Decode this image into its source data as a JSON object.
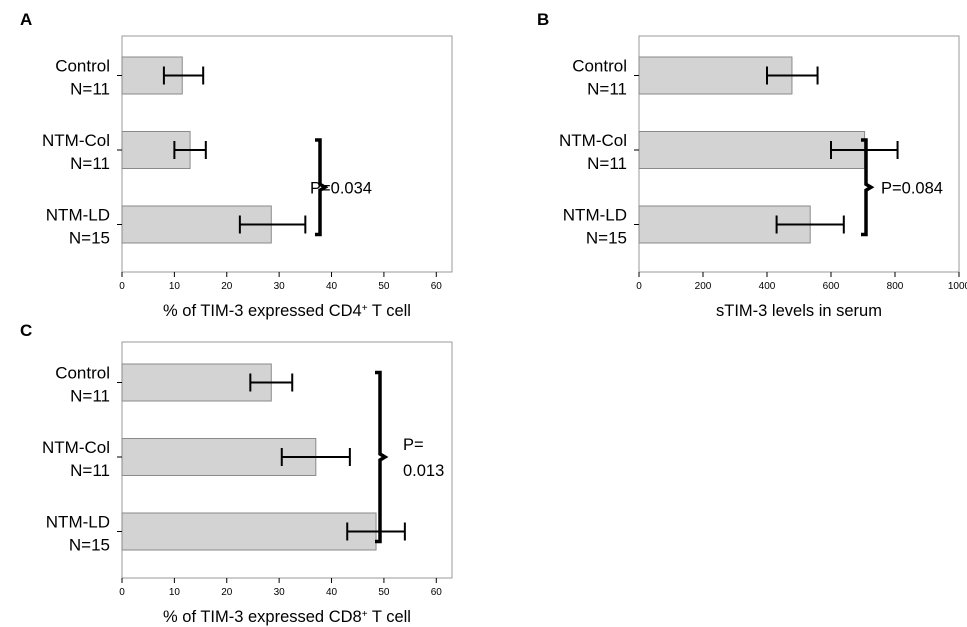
{
  "chart_data": [
    {
      "type": "bar",
      "orientation": "horizontal",
      "panel_label": "A",
      "categories": [
        {
          "name": "Control",
          "n": "N=11"
        },
        {
          "name": "NTM-Col",
          "n": "N=11"
        },
        {
          "name": "NTM-LD",
          "n": "N=15"
        }
      ],
      "values": [
        11.5,
        13,
        28.5
      ],
      "error": [
        [
          8,
          15.5
        ],
        [
          10,
          16
        ],
        [
          22.5,
          35
        ]
      ],
      "xlim": [
        0,
        63
      ],
      "xticks": [
        0,
        10,
        20,
        30,
        40,
        50,
        60
      ],
      "xlabel_parts": [
        "% of TIM-3 expressed CD4",
        "+",
        " T cell"
      ],
      "annotation": {
        "lines": [
          "P=0.034"
        ],
        "between": [
          1,
          2
        ]
      },
      "grid": false
    },
    {
      "type": "bar",
      "orientation": "horizontal",
      "panel_label": "B",
      "categories": [
        {
          "name": "Control",
          "n": "N=11"
        },
        {
          "name": "NTM-Col",
          "n": "N=11"
        },
        {
          "name": "NTM-LD",
          "n": "N=15"
        }
      ],
      "values": [
        478,
        705,
        535
      ],
      "error": [
        [
          400,
          558
        ],
        [
          600,
          808
        ],
        [
          430,
          640
        ]
      ],
      "xlim": [
        0,
        1000
      ],
      "xticks": [
        0,
        200,
        400,
        600,
        800,
        1000
      ],
      "xlabel_parts": [
        "sTIM-3 levels in serum"
      ],
      "annotation": {
        "lines": [
          "P=0.084"
        ],
        "between": [
          1,
          2
        ]
      },
      "grid": false
    },
    {
      "type": "bar",
      "orientation": "horizontal",
      "panel_label": "C",
      "categories": [
        {
          "name": "Control",
          "n": "N=11"
        },
        {
          "name": "NTM-Col",
          "n": "N=11"
        },
        {
          "name": "NTM-LD",
          "n": "N=15"
        }
      ],
      "values": [
        28.5,
        37,
        48.5
      ],
      "error": [
        [
          24.5,
          32.5
        ],
        [
          30.5,
          43.5
        ],
        [
          43,
          54
        ]
      ],
      "xlim": [
        0,
        63
      ],
      "xticks": [
        0,
        10,
        20,
        30,
        40,
        50,
        60
      ],
      "xlabel_parts": [
        "% of TIM-3 expressed CD8",
        "+",
        " T cell"
      ],
      "annotation": {
        "lines": [
          "P=",
          "0.013"
        ],
        "between": [
          0,
          2
        ]
      },
      "grid": false
    }
  ],
  "colors": {
    "bar_fill": "#d3d3d3",
    "bar_stroke": "#8a8a8a",
    "frame": "#9a9a9a",
    "ink": "#000000"
  }
}
